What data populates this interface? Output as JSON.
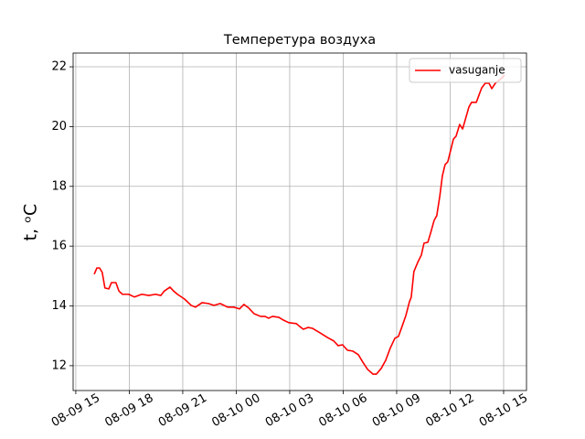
{
  "chart_data": {
    "type": "line",
    "title": "Темперетура воздуха",
    "ylabel": "t, ᵒC",
    "x": [
      "08-09 16:02",
      "08-09 16:11",
      "08-09 16:20",
      "08-09 16:29",
      "08-09 16:38",
      "08-09 16:51",
      "08-09 17:00",
      "08-09 17:15",
      "08-09 17:25",
      "08-09 17:37",
      "08-09 17:58",
      "08-09 18:17",
      "08-09 18:42",
      "08-09 19:06",
      "08-09 19:28",
      "08-09 19:46",
      "08-09 19:58",
      "08-09 20:17",
      "08-09 20:29",
      "08-09 20:42",
      "08-09 21:06",
      "08-09 21:28",
      "08-09 21:43",
      "08-09 22:05",
      "08-09 22:26",
      "08-09 22:45",
      "08-09 23:06",
      "08-09 23:31",
      "08-09 23:52",
      "08-10 00:11",
      "08-10 00:26",
      "08-10 00:42",
      "08-10 01:00",
      "08-10 01:22",
      "08-10 01:37",
      "08-10 01:49",
      "08-10 02:02",
      "08-10 02:23",
      "08-10 02:38",
      "08-10 02:57",
      "08-10 03:22",
      "08-10 03:34",
      "08-10 03:46",
      "08-10 04:02",
      "08-10 04:17",
      "08-10 04:42",
      "08-10 05:06",
      "08-10 05:28",
      "08-10 05:43",
      "08-10 05:58",
      "08-10 06:14",
      "08-10 06:32",
      "08-10 06:51",
      "08-10 07:06",
      "08-10 07:22",
      "08-10 07:40",
      "08-10 07:52",
      "08-10 08:08",
      "08-10 08:23",
      "08-10 08:38",
      "08-10 08:54",
      "08-10 09:06",
      "08-10 09:18",
      "08-10 09:31",
      "08-10 09:43",
      "08-10 09:49",
      "08-10 09:58",
      "08-10 10:11",
      "08-10 10:23",
      "08-10 10:32",
      "08-10 10:45",
      "08-10 10:54",
      "08-10 11:06",
      "08-10 11:15",
      "08-10 11:25",
      "08-10 11:34",
      "08-10 11:43",
      "08-10 11:52",
      "08-10 12:02",
      "08-10 12:11",
      "08-10 12:20",
      "08-10 12:32",
      "08-10 12:42",
      "08-10 12:51",
      "08-10 13:03",
      "08-10 13:12",
      "08-10 13:28",
      "08-10 13:37",
      "08-10 13:46",
      "08-10 13:58",
      "08-10 14:11",
      "08-10 14:20",
      "08-10 14:32",
      "08-10 14:48",
      "08-10 15:03"
    ],
    "series": [
      {
        "name": "vasuganje",
        "color": "#ff0000",
        "values": [
          15.06,
          15.27,
          15.27,
          15.12,
          14.6,
          14.57,
          14.78,
          14.78,
          14.5,
          14.39,
          14.39,
          14.3,
          14.39,
          14.35,
          14.39,
          14.35,
          14.5,
          14.63,
          14.5,
          14.39,
          14.23,
          14.02,
          13.96,
          14.11,
          14.08,
          14.02,
          14.08,
          13.96,
          13.96,
          13.9,
          14.05,
          13.93,
          13.74,
          13.65,
          13.65,
          13.59,
          13.65,
          13.62,
          13.53,
          13.44,
          13.41,
          13.31,
          13.22,
          13.28,
          13.25,
          13.1,
          12.95,
          12.83,
          12.67,
          12.7,
          12.52,
          12.49,
          12.37,
          12.12,
          11.88,
          11.72,
          11.72,
          11.91,
          12.18,
          12.58,
          12.92,
          12.98,
          13.31,
          13.68,
          14.14,
          14.29,
          15.15,
          15.46,
          15.7,
          16.1,
          16.13,
          16.43,
          16.86,
          17.02,
          17.66,
          18.36,
          18.73,
          18.82,
          19.22,
          19.58,
          19.68,
          20.07,
          19.92,
          20.23,
          20.65,
          20.81,
          20.81,
          21.05,
          21.29,
          21.45,
          21.45,
          21.27,
          21.45,
          21.57,
          21.72
        ]
      }
    ],
    "xlim": [
      "08-09 14:51",
      "08-10 16:17"
    ],
    "xticks": [
      "08-09 15",
      "08-09 18",
      "08-09 21",
      "08-10 00",
      "08-10 03",
      "08-10 06",
      "08-10 09",
      "08-10 12",
      "08-10 15"
    ],
    "ylim": [
      11.17,
      22.46
    ],
    "yticks": [
      12,
      14,
      16,
      18,
      20,
      22
    ],
    "grid": true,
    "legend": "upper right"
  }
}
